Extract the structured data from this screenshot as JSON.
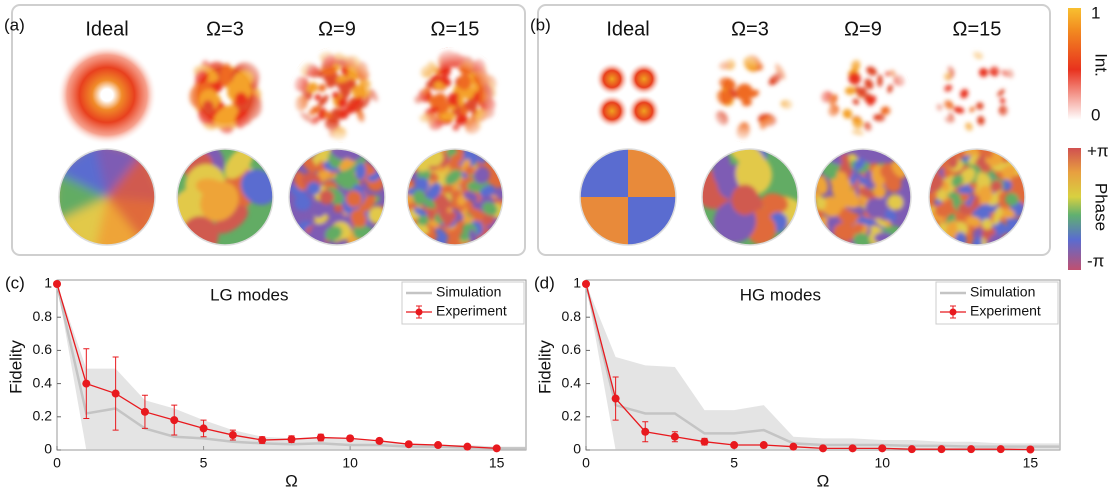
{
  "panels": {
    "a": {
      "label": "(a)",
      "columns": [
        "Ideal",
        "Ω=3",
        "Ω=9",
        "Ω=15"
      ]
    },
    "b": {
      "label": "(b)",
      "columns": [
        "Ideal",
        "Ω=3",
        "Ω=9",
        "Ω=15"
      ]
    }
  },
  "colorbars": {
    "intensity": {
      "label": "Int.",
      "ticks": [
        1,
        0
      ]
    },
    "phase": {
      "label": "Phase",
      "ticks": [
        "+π",
        "-π"
      ]
    }
  },
  "chart_data": [
    {
      "type": "line",
      "panel_label": "(c)",
      "annotation": "LG modes",
      "xlabel": "Ω",
      "ylabel": "Fidelity",
      "xlim": [
        0,
        16
      ],
      "ylim": [
        0,
        1
      ],
      "xticks": [
        0,
        5,
        10,
        15
      ],
      "yticks": [
        0,
        0.2,
        0.4,
        0.6,
        0.8,
        1
      ],
      "series": [
        {
          "name": "Simulation",
          "color": "#c4c4c4",
          "x": [
            0,
            1,
            2,
            3,
            4,
            5,
            6,
            7,
            8,
            9,
            10,
            11,
            12,
            13,
            14,
            15,
            16
          ],
          "values": [
            1,
            0.22,
            0.25,
            0.13,
            0.08,
            0.07,
            0.05,
            0.04,
            0.035,
            0.04,
            0.03,
            0.03,
            0.02,
            0.02,
            0.015,
            0.01,
            0.01
          ],
          "upper": [
            1,
            0.49,
            0.49,
            0.3,
            0.25,
            0.18,
            0.12,
            0.08,
            0.07,
            0.08,
            0.07,
            0.05,
            0.04,
            0.03,
            0.03,
            0.02,
            0.02
          ],
          "lower": [
            1,
            0,
            0,
            0,
            0,
            0,
            0,
            0,
            0,
            0,
            0,
            0,
            0,
            0,
            0,
            0,
            0
          ]
        },
        {
          "name": "Experiment",
          "color": "#e8191e",
          "x": [
            0,
            1,
            2,
            3,
            4,
            5,
            6,
            7,
            8,
            9,
            10,
            11,
            12,
            13,
            14,
            15
          ],
          "values": [
            1,
            0.4,
            0.34,
            0.23,
            0.18,
            0.13,
            0.09,
            0.06,
            0.065,
            0.075,
            0.07,
            0.055,
            0.035,
            0.03,
            0.02,
            0.01
          ],
          "errors": [
            0,
            0.21,
            0.22,
            0.1,
            0.09,
            0.05,
            0.03,
            0.02,
            0.02,
            0.02,
            0.015,
            0.01,
            0.005,
            0.005,
            0.005,
            0.005
          ]
        }
      ]
    },
    {
      "type": "line",
      "panel_label": "(d)",
      "annotation": "HG modes",
      "xlabel": "Ω",
      "ylabel": "Fidelity",
      "xlim": [
        0,
        16
      ],
      "ylim": [
        0,
        1
      ],
      "xticks": [
        0,
        5,
        10,
        15
      ],
      "yticks": [
        0,
        0.2,
        0.4,
        0.6,
        0.8,
        1
      ],
      "series": [
        {
          "name": "Simulation",
          "color": "#c4c4c4",
          "x": [
            0,
            1,
            2,
            3,
            4,
            5,
            6,
            7,
            8,
            9,
            10,
            11,
            12,
            13,
            14,
            15,
            16
          ],
          "values": [
            1,
            0.27,
            0.22,
            0.22,
            0.1,
            0.1,
            0.12,
            0.04,
            0.03,
            0.03,
            0.03,
            0.025,
            0.025,
            0.02,
            0.02,
            0.02,
            0.02
          ],
          "upper": [
            1,
            0.56,
            0.51,
            0.5,
            0.24,
            0.24,
            0.27,
            0.08,
            0.07,
            0.07,
            0.06,
            0.06,
            0.05,
            0.05,
            0.04,
            0.04,
            0.04
          ],
          "lower": [
            1,
            0,
            0,
            0,
            0,
            0,
            0,
            0,
            0,
            0,
            0,
            0,
            0,
            0,
            0,
            0,
            0
          ]
        },
        {
          "name": "Experiment",
          "color": "#e8191e",
          "x": [
            0,
            1,
            2,
            3,
            4,
            5,
            6,
            7,
            8,
            9,
            10,
            11,
            12,
            13,
            14,
            15
          ],
          "values": [
            1,
            0.31,
            0.11,
            0.08,
            0.05,
            0.03,
            0.03,
            0.02,
            0.01,
            0.01,
            0.01,
            0.005,
            0.005,
            0.005,
            0.005,
            0.003
          ],
          "errors": [
            0,
            0.13,
            0.06,
            0.03,
            0.02,
            0.01,
            0.01,
            0.005,
            0.005,
            0.005,
            0.005,
            0.003,
            0.003,
            0.003,
            0.003,
            0.002
          ]
        }
      ]
    }
  ]
}
